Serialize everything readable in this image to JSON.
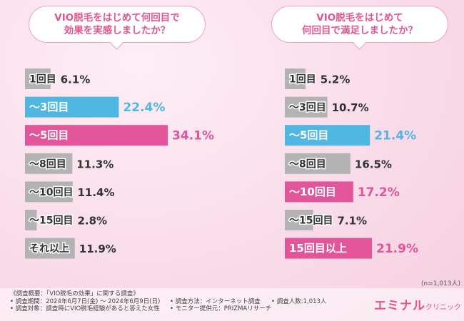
{
  "chart_data": [
    {
      "type": "bar",
      "orientation": "horizontal",
      "title": "VIO脱毛をはじめて何回目で\n効果を実感しましたか？",
      "categories": [
        "1回目",
        "〜3回目",
        "〜5回目",
        "〜8回目",
        "〜10回目",
        "〜15回目",
        "それ以上"
      ],
      "values": [
        6.1,
        22.4,
        34.1,
        11.3,
        11.4,
        2.8,
        11.9
      ],
      "value_labels": [
        "6.1%",
        "22.4%",
        "34.1%",
        "11.3%",
        "11.4%",
        "2.8%",
        "11.9%"
      ],
      "highlight": {
        "1": "blue",
        "2": "pink"
      },
      "xlim": [
        0,
        34.1
      ]
    },
    {
      "type": "bar",
      "orientation": "horizontal",
      "title": "VIO脱毛をはじめて\n何回目で満足しましたか？",
      "categories": [
        "1回目",
        "〜3回目",
        "〜5回目",
        "〜8回目",
        "〜10回目",
        "〜15回目",
        "15回目以上"
      ],
      "values": [
        5.2,
        10.7,
        21.4,
        16.5,
        17.2,
        7.1,
        21.9
      ],
      "value_labels": [
        "5.2%",
        "10.7%",
        "21.4%",
        "16.5%",
        "17.2%",
        "7.1%",
        "21.9%"
      ],
      "highlight": {
        "2": "blue",
        "4": "pink",
        "6": "pink"
      },
      "xlim": [
        0,
        21.9
      ]
    }
  ],
  "colors": {
    "gray": "#b3b3b3",
    "blue": "#4fb7e2",
    "pink": "#e2559a",
    "pink_text": "#e2559a",
    "dark_text": "#333333"
  },
  "n_label": "(n=1,013人)",
  "footer": {
    "col1": [
      "《調査概要：「VIO脱毛の効果」に関する調査》",
      "• 調査期間：2024年6月7日(金) 〜 2024年6月9日(日)",
      "• 調査対象：調査時にVIO脱毛経験があると答えた女性"
    ],
    "col2": [
      "• 調査方法：インターネット調査",
      "• モニター提供元：PRIZMAリサーチ"
    ],
    "col3": [
      "• 調査人数:1,013人"
    ]
  },
  "logo": {
    "main": "エミナル",
    "sub": "クリニック"
  }
}
